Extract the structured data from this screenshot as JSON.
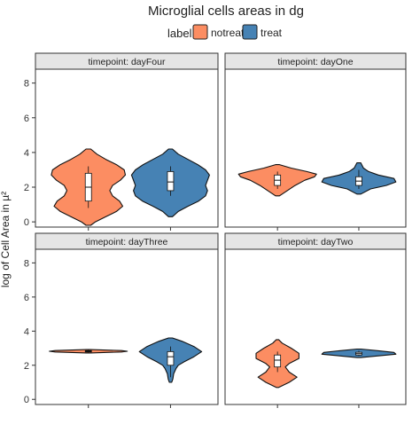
{
  "chart_data": {
    "type": "violin",
    "title": "Microglial cells areas in dg",
    "ylabel": "log of Cell Area in µ²",
    "xlabel": "",
    "ylim": [
      -0.3,
      8.8
    ],
    "yticks": [
      0,
      2,
      4,
      6,
      8
    ],
    "legend": {
      "title": "label",
      "position": "top",
      "entries": [
        {
          "name": "notreat",
          "color": "#FC8D62"
        },
        {
          "name": "treat",
          "color": "#4682B4"
        }
      ]
    },
    "facet_label_prefix": "timepoint: ",
    "panels": [
      {
        "timepoint": "dayFour",
        "violins": [
          {
            "series": "notreat",
            "profile": [
              [
                -0.2,
                0.06
              ],
              [
                0.0,
                0.18
              ],
              [
                0.3,
                0.45
              ],
              [
                0.6,
                0.72
              ],
              [
                0.9,
                0.88
              ],
              [
                1.2,
                0.8
              ],
              [
                1.5,
                0.62
              ],
              [
                1.8,
                0.55
              ],
              [
                2.1,
                0.62
              ],
              [
                2.4,
                0.82
              ],
              [
                2.7,
                0.95
              ],
              [
                3.0,
                0.92
              ],
              [
                3.3,
                0.72
              ],
              [
                3.6,
                0.45
              ],
              [
                3.9,
                0.22
              ],
              [
                4.2,
                0.06
              ]
            ],
            "box": {
              "q1": 1.2,
              "median": 2.0,
              "q3": 2.8,
              "wlo": 0.8,
              "whi": 3.2
            }
          },
          {
            "series": "treat",
            "profile": [
              [
                0.3,
                0.05
              ],
              [
                0.6,
                0.2
              ],
              [
                0.9,
                0.45
              ],
              [
                1.2,
                0.72
              ],
              [
                1.5,
                0.9
              ],
              [
                1.8,
                0.95
              ],
              [
                2.1,
                0.9
              ],
              [
                2.4,
                0.95
              ],
              [
                2.7,
                1.0
              ],
              [
                3.0,
                0.9
              ],
              [
                3.3,
                0.7
              ],
              [
                3.6,
                0.45
              ],
              [
                3.9,
                0.2
              ],
              [
                4.2,
                0.05
              ]
            ],
            "box": {
              "q1": 1.8,
              "median": 2.3,
              "q3": 2.9,
              "wlo": 1.5,
              "whi": 3.2
            }
          }
        ]
      },
      {
        "timepoint": "dayOne",
        "violins": [
          {
            "series": "notreat",
            "profile": [
              [
                1.5,
                0.05
              ],
              [
                1.8,
                0.25
              ],
              [
                2.1,
                0.45
              ],
              [
                2.4,
                0.7
              ],
              [
                2.6,
                0.95
              ],
              [
                2.75,
                1.0
              ],
              [
                2.9,
                0.75
              ],
              [
                3.1,
                0.35
              ],
              [
                3.3,
                0.05
              ]
            ],
            "box": {
              "q1": 2.1,
              "median": 2.4,
              "q3": 2.7,
              "wlo": 1.9,
              "whi": 2.9
            }
          },
          {
            "series": "treat",
            "profile": [
              [
                1.6,
                0.05
              ],
              [
                1.9,
                0.3
              ],
              [
                2.1,
                0.7
              ],
              [
                2.3,
                0.95
              ],
              [
                2.5,
                0.9
              ],
              [
                2.7,
                0.5
              ],
              [
                2.9,
                0.25
              ],
              [
                3.1,
                0.12
              ],
              [
                3.4,
                0.05
              ]
            ],
            "box": {
              "q1": 2.1,
              "median": 2.35,
              "q3": 2.6,
              "wlo": 1.9,
              "whi": 3.0
            }
          }
        ]
      },
      {
        "timepoint": "dayThree",
        "violins": [
          {
            "series": "notreat",
            "profile": [
              [
                2.72,
                0.05
              ],
              [
                2.78,
                0.85
              ],
              [
                2.82,
                1.0
              ],
              [
                2.86,
                0.85
              ],
              [
                2.92,
                0.05
              ]
            ],
            "box": {
              "q1": 2.78,
              "median": 2.82,
              "q3": 2.86,
              "wlo": 2.75,
              "whi": 2.9
            }
          },
          {
            "series": "treat",
            "profile": [
              [
                1.0,
                0.03
              ],
              [
                1.2,
                0.06
              ],
              [
                1.5,
                0.08
              ],
              [
                1.8,
                0.14
              ],
              [
                2.0,
                0.2
              ],
              [
                2.2,
                0.35
              ],
              [
                2.5,
                0.6
              ],
              [
                2.8,
                0.8
              ],
              [
                3.1,
                0.6
              ],
              [
                3.4,
                0.3
              ],
              [
                3.6,
                0.05
              ]
            ],
            "box": {
              "q1": 2.0,
              "median": 2.5,
              "q3": 2.8,
              "wlo": 1.3,
              "whi": 3.1
            }
          }
        ]
      },
      {
        "timepoint": "dayTwo",
        "violins": [
          {
            "series": "notreat",
            "profile": [
              [
                0.7,
                0.03
              ],
              [
                1.0,
                0.3
              ],
              [
                1.3,
                0.5
              ],
              [
                1.6,
                0.3
              ],
              [
                1.9,
                0.2
              ],
              [
                2.1,
                0.3
              ],
              [
                2.4,
                0.55
              ],
              [
                2.7,
                0.55
              ],
              [
                3.0,
                0.35
              ],
              [
                3.3,
                0.12
              ],
              [
                3.5,
                0.03
              ]
            ],
            "box": {
              "q1": 1.9,
              "median": 2.3,
              "q3": 2.6,
              "wlo": 1.6,
              "whi": 2.8
            }
          },
          {
            "series": "treat",
            "profile": [
              [
                2.45,
                0.05
              ],
              [
                2.55,
                0.5
              ],
              [
                2.65,
                0.95
              ],
              [
                2.75,
                0.9
              ],
              [
                2.85,
                0.5
              ],
              [
                2.95,
                0.05
              ]
            ],
            "box": {
              "q1": 2.6,
              "median": 2.68,
              "q3": 2.76,
              "wlo": 2.55,
              "whi": 2.85
            }
          }
        ]
      }
    ]
  }
}
